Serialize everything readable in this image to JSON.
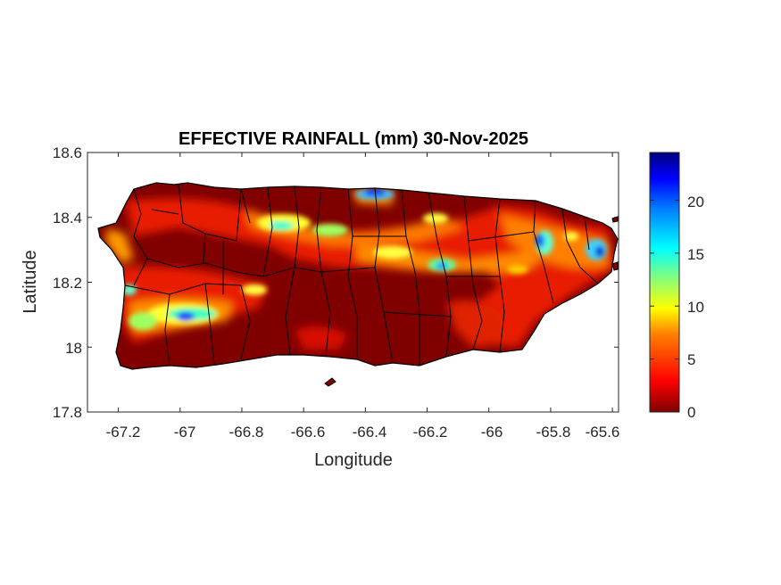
{
  "map": {
    "title": "EFFECTIVE RAINFALL (mm) 30-Nov-2025",
    "xlabel": "Longitude",
    "ylabel": "Latitude",
    "xticks": [
      "-67.2",
      "-67",
      "-66.8",
      "-66.6",
      "-66.4",
      "-66.2",
      "-66",
      "-65.8",
      "-65.6"
    ],
    "yticks": [
      "18.6",
      "18.4",
      "18.2",
      "18",
      "17.8"
    ],
    "colorbar_ticks": [
      "20",
      "15",
      "10",
      "5",
      "0"
    ],
    "xlim": [
      -67.3,
      -65.58
    ],
    "ylim": [
      17.8,
      18.6
    ],
    "colorbar_range": [
      0,
      24.5
    ],
    "colormap": "jet",
    "background_color": "#800000",
    "boundary_color": "#000000"
  }
}
